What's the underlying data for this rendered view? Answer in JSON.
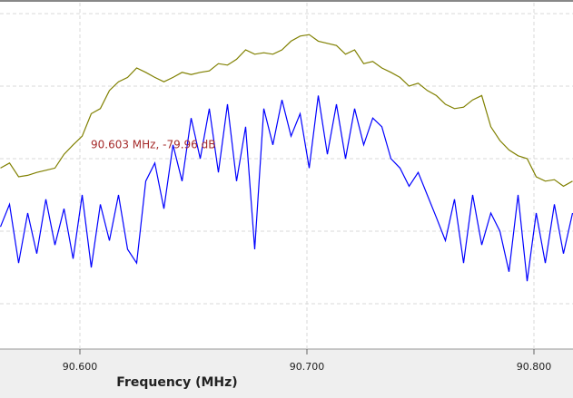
{
  "chart_data": {
    "type": "line",
    "xlabel": "Frequency (MHz)",
    "annotation": "90.603 MHz, -79.96 dB",
    "x": [
      90.565,
      90.569,
      90.573,
      90.577,
      90.581,
      90.585,
      90.589,
      90.593,
      90.597,
      90.601,
      90.605,
      90.609,
      90.613,
      90.617,
      90.621,
      90.625,
      90.629,
      90.633,
      90.637,
      90.641,
      90.645,
      90.649,
      90.653,
      90.657,
      90.661,
      90.665,
      90.669,
      90.673,
      90.677,
      90.681,
      90.685,
      90.689,
      90.693,
      90.697,
      90.701,
      90.705,
      90.709,
      90.713,
      90.717,
      90.721,
      90.725,
      90.729,
      90.733,
      90.737,
      90.741,
      90.745,
      90.749,
      90.753,
      90.757,
      90.761,
      90.765,
      90.769,
      90.773,
      90.777,
      90.781,
      90.785,
      90.789,
      90.793,
      90.797,
      90.801,
      90.805,
      90.809,
      90.813,
      90.817
    ],
    "series": [
      {
        "color": "#808000",
        "values": [
          -81.3,
          -80.6,
          -82.5,
          -82.3,
          -81.9,
          -81.6,
          -81.3,
          -79.4,
          -78.1,
          -76.9,
          -73.8,
          -73.1,
          -70.6,
          -69.4,
          -68.8,
          -67.5,
          -68.1,
          -68.8,
          -69.4,
          -68.8,
          -68.1,
          -68.4,
          -68.1,
          -67.9,
          -66.9,
          -67.1,
          -66.3,
          -65.0,
          -65.6,
          -65.4,
          -65.6,
          -65.0,
          -63.8,
          -63.1,
          -62.9,
          -63.8,
          -64.1,
          -64.4,
          -65.6,
          -65.0,
          -66.9,
          -66.6,
          -67.5,
          -68.1,
          -68.8,
          -70.0,
          -69.6,
          -70.6,
          -71.3,
          -72.5,
          -73.1,
          -72.9,
          -71.9,
          -71.3,
          -75.6,
          -77.5,
          -78.8,
          -79.6,
          -80.0,
          -82.5,
          -83.1,
          -82.9,
          -83.8,
          -83.1
        ]
      },
      {
        "color": "#0000ff",
        "values": [
          -89.4,
          -86.3,
          -94.4,
          -87.5,
          -93.1,
          -85.6,
          -91.9,
          -86.9,
          -93.8,
          -85.0,
          -95.0,
          -86.3,
          -91.3,
          -85.0,
          -92.5,
          -94.4,
          -83.1,
          -80.6,
          -86.9,
          -78.1,
          -83.1,
          -74.4,
          -80.0,
          -73.1,
          -81.9,
          -72.5,
          -83.1,
          -75.6,
          -92.5,
          -73.1,
          -78.1,
          -71.9,
          -76.9,
          -73.8,
          -81.3,
          -71.3,
          -79.4,
          -72.5,
          -80.0,
          -73.1,
          -78.1,
          -74.4,
          -75.6,
          -80.0,
          -81.3,
          -83.8,
          -81.9,
          -85.0,
          -88.1,
          -91.3,
          -85.6,
          -94.4,
          -85.0,
          -91.9,
          -87.5,
          -90.0,
          -95.6,
          -85.0,
          -96.9,
          -87.5,
          -94.4,
          -86.3,
          -93.1,
          -87.5
        ]
      }
    ],
    "xlim": [
      90.5648,
      90.8172
    ],
    "ylim": [
      -58.5,
      -106.25
    ],
    "xticks": [
      {
        "value": 90.6,
        "label": "90.600"
      },
      {
        "value": 90.7,
        "label": "90.700"
      },
      {
        "value": 90.8,
        "label": "90.800"
      }
    ],
    "yticks": [
      -60,
      -70,
      -80,
      -90,
      -100
    ],
    "grid": true
  }
}
